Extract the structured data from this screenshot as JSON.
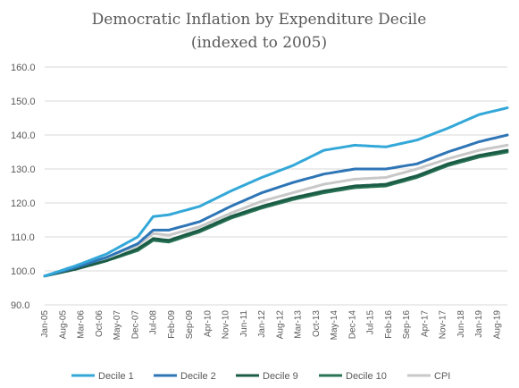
{
  "chart_data": {
    "type": "line",
    "title": "Democratic Inflation by Expenditure Decile",
    "subtitle": "(indexed to 2005)",
    "ylim": [
      90,
      160
    ],
    "y_ticks": [
      "160.0",
      "150.0",
      "140.0",
      "130.0",
      "120.0",
      "110.0",
      "100.0",
      "90.0"
    ],
    "x_tick_labels": [
      "Jan-05",
      "Aug-05",
      "Mar-06",
      "Oct-06",
      "May-07",
      "Dec-07",
      "Jul-08",
      "Feb-09",
      "Sep-09",
      "Apr-10",
      "Nov-10",
      "Jun-11",
      "Jan-12",
      "Aug-12",
      "Mar-13",
      "Oct-13",
      "May-14",
      "Dec-14",
      "Jul-15",
      "Feb-16",
      "Sep-16",
      "Apr-17",
      "Nov-17",
      "Jun-18",
      "Jan-19",
      "Aug-19"
    ],
    "grid": "horizontal",
    "legend_position": "bottom",
    "x_anchor_dates": [
      "Jan-05",
      "Jan-06",
      "Jan-07",
      "Jan-08",
      "Jul-08",
      "Jan-09",
      "Jan-10",
      "Jan-11",
      "Jan-12",
      "Jan-13",
      "Jan-14",
      "Jan-15",
      "Jan-16",
      "Jan-17",
      "Jan-18",
      "Jan-19",
      "Dec-19"
    ],
    "series": [
      {
        "name": "Decile 1",
        "color": "#33a8d8",
        "values": [
          98.5,
          101.5,
          105.0,
          110.0,
          116.0,
          116.5,
          119.0,
          123.5,
          127.5,
          131.0,
          135.5,
          137.0,
          136.5,
          138.5,
          142.0,
          146.0,
          148.0
        ]
      },
      {
        "name": "Decile 2",
        "color": "#2e75b6",
        "values": [
          98.5,
          101.0,
          104.0,
          108.0,
          112.0,
          112.0,
          114.5,
          119.0,
          123.0,
          126.0,
          128.5,
          130.0,
          130.0,
          131.5,
          135.0,
          138.0,
          140.0
        ]
      },
      {
        "name": "Decile 9",
        "color": "#1a5c45",
        "values": [
          98.5,
          100.5,
          103.0,
          106.5,
          109.5,
          109.0,
          112.0,
          116.0,
          119.0,
          121.5,
          123.5,
          125.0,
          125.5,
          128.0,
          131.5,
          134.0,
          135.5
        ]
      },
      {
        "name": "Decile 10",
        "color": "#2a7355",
        "values": [
          98.5,
          100.5,
          103.0,
          106.0,
          109.0,
          108.5,
          111.5,
          115.5,
          118.5,
          121.0,
          123.0,
          124.5,
          125.0,
          127.5,
          131.0,
          133.5,
          135.0
        ]
      },
      {
        "name": "CPI",
        "color": "#c8c8c8",
        "values": [
          98.5,
          101.0,
          104.0,
          107.5,
          111.0,
          110.5,
          113.0,
          117.0,
          120.5,
          123.0,
          125.5,
          127.0,
          127.5,
          130.0,
          133.0,
          135.5,
          137.0
        ]
      }
    ]
  }
}
